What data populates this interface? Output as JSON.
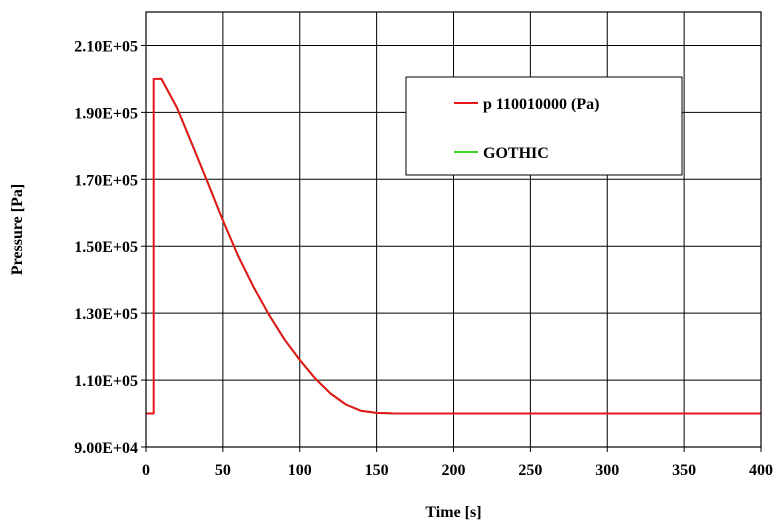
{
  "chart_data": {
    "type": "line",
    "title": "",
    "xlabel": "Time [s]",
    "ylabel": "Pressure [Pa]",
    "xlim": [
      0,
      400
    ],
    "ylim": [
      90000,
      220000
    ],
    "x_ticks": [
      0,
      50,
      100,
      150,
      200,
      250,
      300,
      350,
      400
    ],
    "x_tick_labels": [
      "0",
      "50",
      "100",
      "150",
      "200",
      "250",
      "300",
      "350",
      "400"
    ],
    "y_ticks": [
      90000,
      110000,
      130000,
      150000,
      170000,
      190000,
      210000
    ],
    "y_tick_labels": [
      "9.00E+04",
      "1.10E+05",
      "1.30E+05",
      "1.50E+05",
      "1.70E+05",
      "1.90E+05",
      "2.10E+05"
    ],
    "grid": true,
    "legend_position": "top-right",
    "series": [
      {
        "name": "p 110010000 (Pa)",
        "color": "#e8141c",
        "x": [
          0,
          5,
          5,
          10,
          20,
          30,
          40,
          50,
          60,
          70,
          80,
          90,
          100,
          110,
          120,
          130,
          140,
          150,
          160,
          170,
          178,
          200,
          250,
          300,
          350,
          400
        ],
        "y": [
          100000,
          100000,
          200000,
          200000,
          191500,
          180500,
          169200,
          157700,
          147000,
          137800,
          129500,
          122200,
          116000,
          110500,
          106000,
          102700,
          100800,
          100200,
          100050,
          100000,
          100000,
          100000,
          100000,
          100000,
          100000,
          100000
        ]
      },
      {
        "name": "GOTHIC",
        "color": "#33dd1a",
        "x": [
          8,
          10,
          20,
          30,
          40,
          50,
          60,
          70,
          80,
          90,
          100,
          110,
          120,
          130,
          140,
          150,
          160,
          170,
          178,
          200,
          250,
          300,
          350,
          400
        ],
        "y": [
          200000,
          200000,
          191500,
          180500,
          169200,
          157700,
          147000,
          137800,
          129500,
          122200,
          116000,
          110500,
          106000,
          102700,
          100800,
          100200,
          100050,
          100000,
          100000,
          100000,
          100000,
          100000,
          100000,
          100000
        ]
      }
    ]
  }
}
